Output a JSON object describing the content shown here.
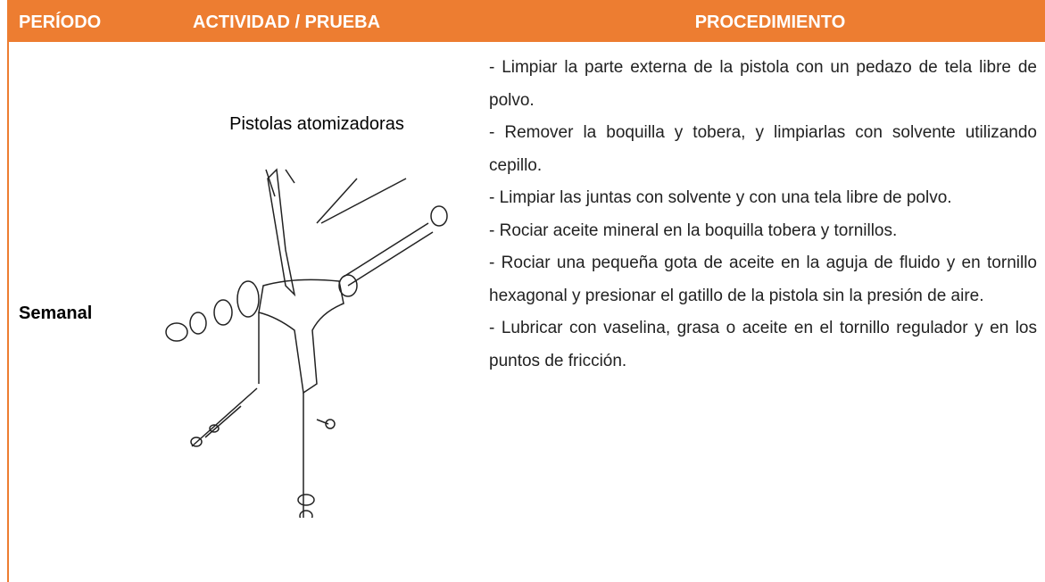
{
  "table": {
    "header": [
      "PERÍODO",
      "ACTIVIDAD / PRUEBA",
      "PROCEDIMIENTO"
    ],
    "rows": [
      {
        "period": "Semanal",
        "activity": "Pistolas atomizadoras",
        "procedure": [
          "- Limpiar la parte externa de la pistola con un pedazo de tela libre de polvo.",
          "- Remover la boquilla y tobera, y limpiarlas con solvente utilizando cepillo.",
          "- Limpiar las juntas con solvente y con una tela libre de polvo.",
          "- Rociar aceite mineral en la boquilla tobera y tornillos.",
          "- Rociar una pequeña gota de aceite en la aguja de fluido y en tornillo hexagonal y presionar el gatillo de la pistola sin la presión de aire.",
          "- Lubricar con vaselina, grasa o aceite en el tornillo regulador y en los puntos de fricción."
        ]
      }
    ]
  }
}
